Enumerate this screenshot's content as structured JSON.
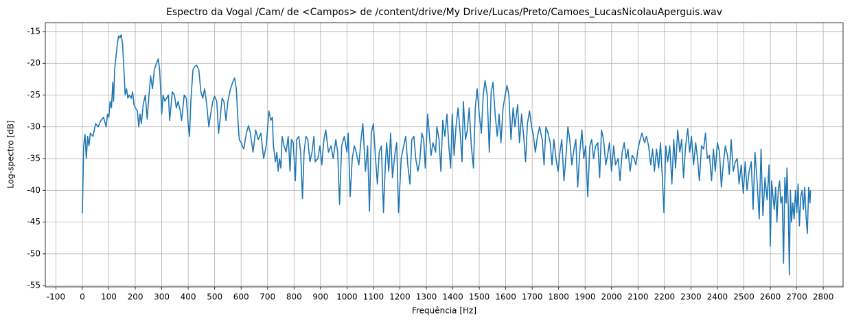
{
  "chart_data": {
    "type": "line",
    "title": "Espectro da Vogal /Cam/ de <Campos> de /content/drive/My Drive/Lucas/Preto/Camoes_LucasNicolauAperguis.wav",
    "x_label": "Frequência [Hz]",
    "y_label": "Log-spectro [dB]",
    "x": [
      0,
      5,
      10,
      15,
      20,
      25,
      30,
      40,
      50,
      60,
      70,
      80,
      90,
      95,
      100,
      105,
      110,
      115,
      118,
      122,
      127,
      132,
      137,
      142,
      147,
      152,
      157,
      162,
      167,
      172,
      177,
      185,
      190,
      195,
      200,
      208,
      213,
      218,
      223,
      230,
      238,
      245,
      250,
      258,
      265,
      272,
      280,
      287,
      292,
      297,
      300,
      305,
      312,
      318,
      325,
      330,
      340,
      348,
      355,
      362,
      370,
      375,
      385,
      393,
      400,
      405,
      410,
      418,
      425,
      432,
      440,
      448,
      455,
      462,
      470,
      478,
      485,
      493,
      500,
      508,
      515,
      520,
      528,
      535,
      543,
      550,
      560,
      568,
      575,
      582,
      588,
      593,
      600,
      610,
      620,
      628,
      635,
      645,
      655,
      665,
      675,
      685,
      695,
      705,
      712,
      718,
      722,
      730,
      735,
      740,
      745,
      750,
      755,
      762,
      770,
      778,
      785,
      790,
      797,
      805,
      810,
      818,
      825,
      832,
      838,
      845,
      852,
      860,
      868,
      875,
      880,
      890,
      898,
      905,
      913,
      920,
      930,
      940,
      948,
      958,
      965,
      972,
      980,
      990,
      1000,
      1005,
      1012,
      1020,
      1028,
      1035,
      1045,
      1052,
      1060,
      1070,
      1078,
      1085,
      1092,
      1100,
      1108,
      1115,
      1122,
      1130,
      1138,
      1145,
      1150,
      1158,
      1165,
      1172,
      1182,
      1188,
      1195,
      1205,
      1212,
      1222,
      1230,
      1238,
      1245,
      1253,
      1260,
      1268,
      1275,
      1283,
      1290,
      1296,
      1305,
      1312,
      1318,
      1325,
      1335,
      1340,
      1348,
      1355,
      1362,
      1370,
      1378,
      1385,
      1392,
      1398,
      1405,
      1412,
      1420,
      1428,
      1435,
      1440,
      1448,
      1455,
      1462,
      1470,
      1478,
      1485,
      1492,
      1500,
      1508,
      1515,
      1522,
      1530,
      1538,
      1545,
      1552,
      1560,
      1568,
      1575,
      1582,
      1590,
      1598,
      1605,
      1612,
      1620,
      1628,
      1635,
      1645,
      1652,
      1660,
      1668,
      1675,
      1682,
      1690,
      1698,
      1705,
      1712,
      1720,
      1728,
      1738,
      1745,
      1752,
      1760,
      1768,
      1775,
      1782,
      1790,
      1798,
      1805,
      1812,
      1820,
      1828,
      1835,
      1842,
      1850,
      1858,
      1865,
      1872,
      1880,
      1888,
      1895,
      1902,
      1910,
      1918,
      1925,
      1932,
      1940,
      1948,
      1955,
      1962,
      1970,
      1978,
      1985,
      1992,
      2000,
      2008,
      2015,
      2025,
      2032,
      2040,
      2048,
      2055,
      2062,
      2070,
      2078,
      2085,
      2092,
      2100,
      2108,
      2115,
      2125,
      2132,
      2140,
      2148,
      2155,
      2162,
      2170,
      2178,
      2185,
      2192,
      2198,
      2205,
      2212,
      2220,
      2228,
      2235,
      2242,
      2250,
      2258,
      2265,
      2272,
      2280,
      2288,
      2295,
      2302,
      2310,
      2318,
      2325,
      2332,
      2340,
      2348,
      2355,
      2362,
      2370,
      2378,
      2385,
      2392,
      2400,
      2408,
      2415,
      2422,
      2430,
      2438,
      2445,
      2452,
      2460,
      2468,
      2475,
      2482,
      2490,
      2498,
      2505,
      2512,
      2520,
      2528,
      2535,
      2542,
      2550,
      2558,
      2565,
      2572,
      2580,
      2588,
      2595,
      2600,
      2605,
      2610,
      2615,
      2620,
      2625,
      2630,
      2635,
      2640,
      2645,
      2650,
      2655,
      2660,
      2663,
      2668,
      2672,
      2676,
      2680,
      2685,
      2690,
      2695,
      2700,
      2705,
      2710,
      2715,
      2720,
      2725,
      2730,
      2735,
      2740,
      2745,
      2750,
      2752
    ],
    "series": [
      {
        "color": "#1f77b4",
        "values": [
          -43.6,
          -33,
          -31.2,
          -35,
          -31.5,
          -33,
          -31,
          -31.5,
          -29.5,
          -30,
          -29,
          -28.5,
          -30,
          -28,
          -28.5,
          -26,
          -27,
          -23,
          -26,
          -21,
          -19,
          -17,
          -15.7,
          -16,
          -15.5,
          -17,
          -21,
          -25,
          -24,
          -25.5,
          -25,
          -25.5,
          -24.5,
          -26.5,
          -27,
          -27.5,
          -30,
          -28,
          -29.5,
          -26.5,
          -25,
          -28.8,
          -26,
          -22,
          -24,
          -21,
          -20,
          -19.3,
          -21,
          -25,
          -28,
          -25,
          -26,
          -25.5,
          -25,
          -29,
          -24.5,
          -25,
          -27,
          -26,
          -27.5,
          -29,
          -25,
          -25.5,
          -29.5,
          -31.5,
          -26,
          -21,
          -20.5,
          -20.3,
          -21,
          -24.5,
          -25.5,
          -24,
          -26.5,
          -30,
          -28,
          -26,
          -25.2,
          -26,
          -31,
          -29,
          -25.5,
          -26,
          -29,
          -26,
          -24,
          -23,
          -22.3,
          -24,
          -29,
          -32,
          -32.5,
          -33.5,
          -31,
          -29.8,
          -31,
          -34,
          -30.5,
          -32,
          -31,
          -35,
          -33,
          -27.5,
          -29,
          -28.5,
          -33,
          -35.5,
          -34,
          -37,
          -35,
          -36.5,
          -31.5,
          -33,
          -34,
          -31.5,
          -37,
          -32,
          -32.5,
          -38.5,
          -32,
          -31.5,
          -34,
          -41.3,
          -34,
          -31.5,
          -32,
          -35.5,
          -34,
          -31.5,
          -35.5,
          -35,
          -33,
          -36,
          -32,
          -30.5,
          -34,
          -33,
          -35,
          -32,
          -34,
          -42.2,
          -33,
          -31.5,
          -34,
          -31,
          -41,
          -35,
          -33,
          -34,
          -36,
          -32.5,
          -29.5,
          -37,
          -33,
          -43.3,
          -31,
          -29.5,
          -35,
          -39,
          -34,
          -33,
          -43.5,
          -36,
          -32.5,
          -37,
          -31,
          -38,
          -34,
          -32.5,
          -43.5,
          -35,
          -33.5,
          -31.5,
          -36,
          -39,
          -32,
          -31.5,
          -35,
          -37,
          -35.5,
          -31,
          -32,
          -36.5,
          -28,
          -31.5,
          -34.5,
          -32.5,
          -34,
          -30,
          -32,
          -37,
          -29,
          -31.5,
          -28,
          -33,
          -36.5,
          -28,
          -34.5,
          -30,
          -27,
          -31,
          -35.5,
          -26,
          -32,
          -30.5,
          -27,
          -33,
          -36.5,
          -27,
          -24,
          -28,
          -31,
          -25,
          -22.7,
          -25,
          -34,
          -24.5,
          -23,
          -28,
          -31.5,
          -28,
          -32.5,
          -27,
          -25,
          -23.5,
          -25,
          -32,
          -27,
          -30,
          -26.5,
          -32.5,
          -28,
          -31.5,
          -35.5,
          -29.5,
          -27.5,
          -30,
          -31.5,
          -34,
          -31.5,
          -30,
          -32,
          -36,
          -30,
          -31,
          -32.5,
          -36,
          -32,
          -35,
          -37,
          -34,
          -32,
          -38.5,
          -34.5,
          -30,
          -32,
          -36,
          -33.5,
          -32,
          -39.5,
          -34,
          -30.5,
          -35,
          -33,
          -41,
          -33,
          -32,
          -35,
          -33,
          -32.5,
          -38,
          -30.5,
          -32,
          -36,
          -34.5,
          -32.5,
          -37,
          -33,
          -36,
          -35,
          -38.5,
          -34,
          -32.5,
          -35,
          -33.5,
          -37,
          -34.5,
          -35,
          -36,
          -33.5,
          -32,
          -31,
          -32.5,
          -31.5,
          -33,
          -36,
          -33.5,
          -37,
          -33.5,
          -36.5,
          -32.5,
          -38,
          -43.5,
          -33,
          -35.5,
          -33,
          -39,
          -32,
          -36.5,
          -30.5,
          -34,
          -32,
          -38,
          -33,
          -30.3,
          -34,
          -31.5,
          -36,
          -32.5,
          -35,
          -38.5,
          -33,
          -33.5,
          -31,
          -35,
          -34.5,
          -38.5,
          -33.5,
          -37,
          -32.5,
          -34,
          -39.5,
          -36,
          -33,
          -34.5,
          -37.5,
          -32,
          -37,
          -35.5,
          -35,
          -39,
          -36,
          -40.5,
          -35.5,
          -40,
          -37,
          -35.5,
          -43,
          -34,
          -38.5,
          -44.5,
          -33.5,
          -44,
          -38,
          -41.5,
          -36,
          -48.8,
          -38.5,
          -41,
          -43,
          -39.5,
          -45,
          -40,
          -38.5,
          -42,
          -41,
          -51.5,
          -38,
          -42,
          -36.5,
          -43,
          -53.3,
          -40,
          -45,
          -42,
          -44.5,
          -40,
          -43.5,
          -39,
          -45.6,
          -41,
          -40,
          -43,
          -39.5,
          -44,
          -46.8,
          -39.5,
          -42,
          -40
        ]
      }
    ],
    "xlim": [
      -140,
      2875
    ],
    "ylim": [
      -55.2,
      -13.6
    ],
    "xticks": [
      -100,
      0,
      100,
      200,
      300,
      400,
      500,
      600,
      700,
      800,
      900,
      1000,
      1100,
      1200,
      1300,
      1400,
      1500,
      1600,
      1700,
      1800,
      1900,
      2000,
      2100,
      2200,
      2300,
      2400,
      2500,
      2600,
      2700,
      2800
    ],
    "yticks": [
      -55,
      -50,
      -45,
      -40,
      -35,
      -30,
      -25,
      -20,
      -15
    ],
    "grid": true
  }
}
